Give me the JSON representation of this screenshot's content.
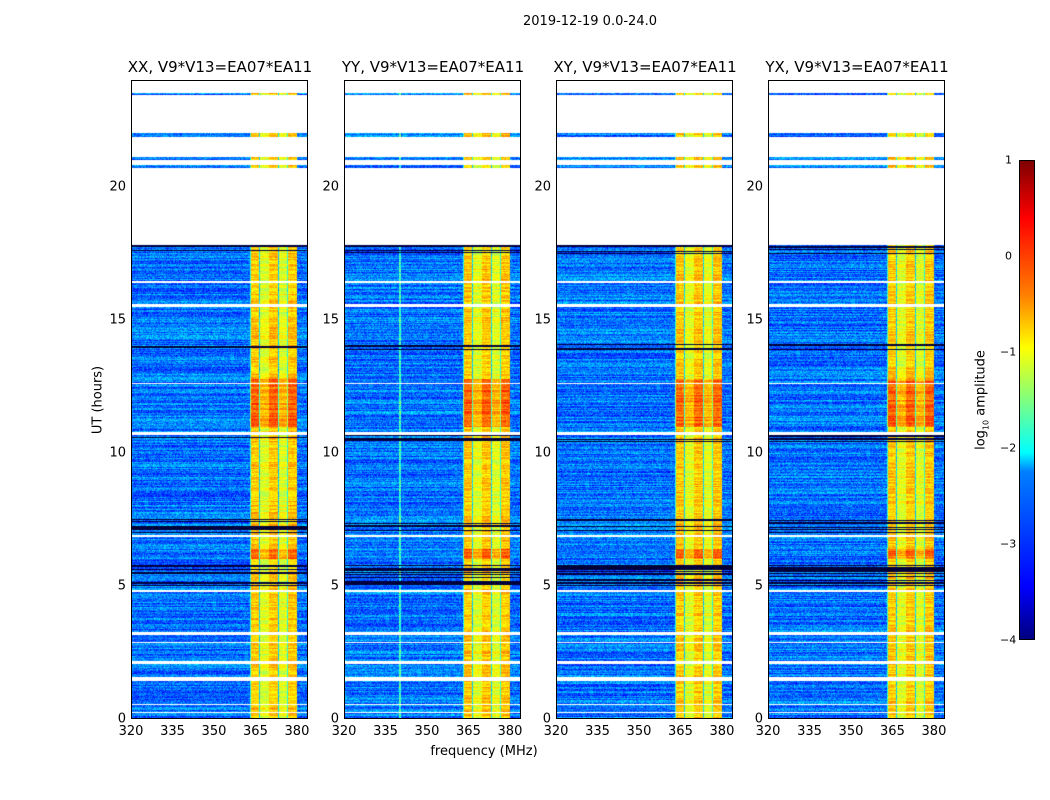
{
  "chart_data": {
    "type": "heatmap",
    "title": "2019-12-19 0.0-24.0",
    "xlabel": "frequency (MHz)",
    "ylabel": "UT (hours)",
    "xlim": [
      320,
      384
    ],
    "ylim": [
      0,
      24
    ],
    "xticks": [
      "320",
      "335",
      "350",
      "365",
      "380"
    ],
    "xtick_values": [
      320,
      335,
      350,
      365,
      380
    ],
    "yticks": [
      "0",
      "5",
      "10",
      "15",
      "20"
    ],
    "ytick_values": [
      0,
      5,
      10,
      15,
      20
    ],
    "panels": [
      {
        "title": "XX, V9*V13=EA07*EA11"
      },
      {
        "title": "YY, V9*V13=EA07*EA11"
      },
      {
        "title": "XY, V9*V13=EA07*EA11"
      },
      {
        "title": "YX, V9*V13=EA07*EA11"
      }
    ],
    "colorbar": {
      "label_prefix": "log",
      "label_sub": "10",
      "label_suffix": " amplitude",
      "range": [
        -4,
        1
      ],
      "ticks": [
        "1",
        "0",
        "−1",
        "−2",
        "−3",
        "−4"
      ],
      "tick_values": [
        1,
        0,
        -1,
        -2,
        -3,
        -4
      ],
      "colormap": "jet"
    },
    "bright_band_mhz": [
      363,
      380
    ],
    "background_level": -2.8,
    "band_level": -0.6,
    "flagged_hours": [
      [
        23.55,
        24
      ],
      [
        22.05,
        23.5
      ],
      [
        21.15,
        21.9
      ],
      [
        20.85,
        21.05
      ],
      [
        17.85,
        20.75
      ],
      [
        16.4,
        16.5
      ],
      [
        15.5,
        15.6
      ],
      [
        12.6,
        12.65
      ],
      [
        10.7,
        10.8
      ],
      [
        6.85,
        6.9
      ],
      [
        4.75,
        4.85
      ],
      [
        3.15,
        3.25
      ],
      [
        2.85,
        2.9
      ],
      [
        2.05,
        2.15
      ],
      [
        1.4,
        1.55
      ],
      [
        0.5,
        0.55
      ],
      [
        0.2,
        0.25
      ]
    ],
    "dark_hours": [
      [
        5.0,
        5.8
      ],
      [
        7.0,
        7.5
      ],
      [
        10.4,
        10.7
      ],
      [
        13.9,
        14.1
      ],
      [
        17.5,
        17.85
      ]
    ]
  }
}
